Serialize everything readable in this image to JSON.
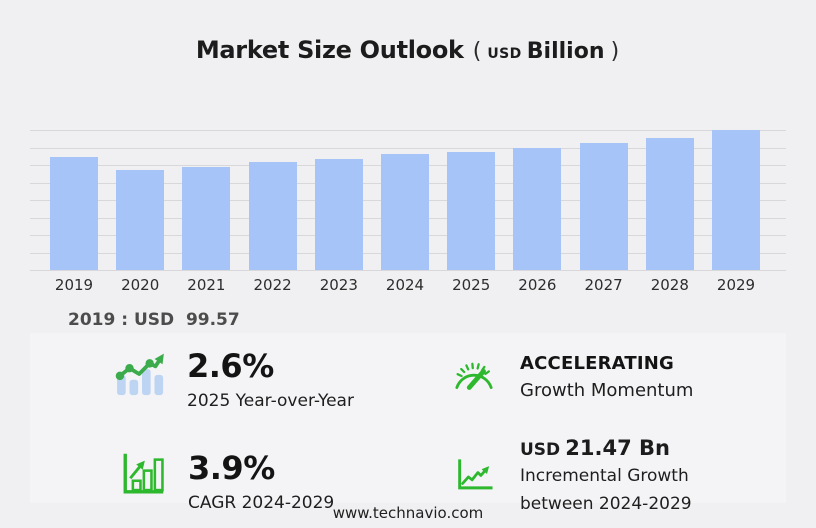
{
  "title": {
    "main": "Market Size Outlook",
    "open_paren": "(",
    "currency": "USD",
    "unit": "Billion",
    "close_paren": ")"
  },
  "chart_data": {
    "type": "bar",
    "title": "Market Size Outlook (USD Billion)",
    "categories": [
      "2019",
      "2020",
      "2021",
      "2022",
      "2023",
      "2024",
      "2025",
      "2026",
      "2027",
      "2028",
      "2029"
    ],
    "values": [
      99.57,
      88.0,
      90.9,
      94.8,
      97.9,
      101.8,
      104.4,
      107.6,
      111.5,
      116.2,
      123.3
    ],
    "unit": "USD Billion",
    "xlabel": "",
    "ylabel": "",
    "ylim": [
      0,
      123.3
    ],
    "grid": true,
    "gridline_count": 9,
    "legend": false,
    "annotation": "2019 : USD  99.57"
  },
  "base_year_note": "2019 : USD  99.57",
  "stats": {
    "yoy": {
      "icon": "bar-chart-trend-icon",
      "value": "2.6%",
      "label": "2025 Year-over-Year"
    },
    "momentum": {
      "icon": "gauge-icon",
      "value": "ACCELERATING",
      "label": "Growth Momentum"
    },
    "cagr": {
      "icon": "bar-chart-growth-icon",
      "value": "3.9%",
      "label": "CAGR 2024-2029"
    },
    "incremental": {
      "icon": "line-chart-growth-icon",
      "currency": "USD",
      "value": "21.47 Bn",
      "label": "Incremental Growth",
      "label2": "between 2024-2029"
    }
  },
  "footer": {
    "url": "www.technavio.com"
  },
  "colors": {
    "bar": "#a6c4f8",
    "icon_bar": "#bdd5f2",
    "green_bright": "#2db82d",
    "green_line": "#3cab4b",
    "grid": "#d8d8da",
    "background": "#f0f0f2",
    "panel": "#f4f4f6"
  }
}
